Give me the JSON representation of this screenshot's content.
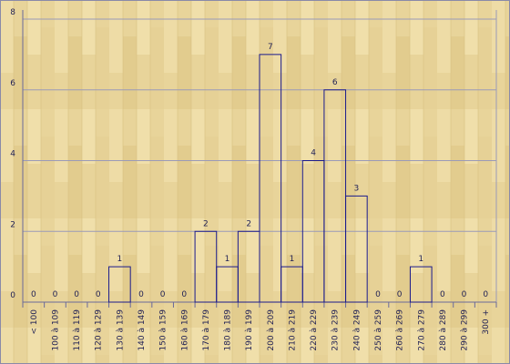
{
  "chart_data": {
    "type": "bar",
    "categories": [
      "< 100",
      "100 à 109",
      "110 à 119",
      "120 à 129",
      "130 à 139",
      "140 à 149",
      "150 à 159",
      "160 à 169",
      "170 à 179",
      "180 à 189",
      "190 à 199",
      "200 à 209",
      "210 à 219",
      "220 à 229",
      "230 à 239",
      "240 à 249",
      "250 à 259",
      "260 à 269",
      "270 à 279",
      "280 à 289",
      "290 à 299",
      "300 +"
    ],
    "values": [
      0,
      0,
      0,
      0,
      1,
      0,
      0,
      0,
      2,
      1,
      2,
      7,
      1,
      4,
      6,
      3,
      0,
      0,
      1,
      0,
      0,
      0
    ],
    "color": "#1a1a8c",
    "ylim": [
      0,
      8
    ],
    "yticks": [
      0,
      2,
      4,
      6,
      8
    ],
    "grid": true
  }
}
